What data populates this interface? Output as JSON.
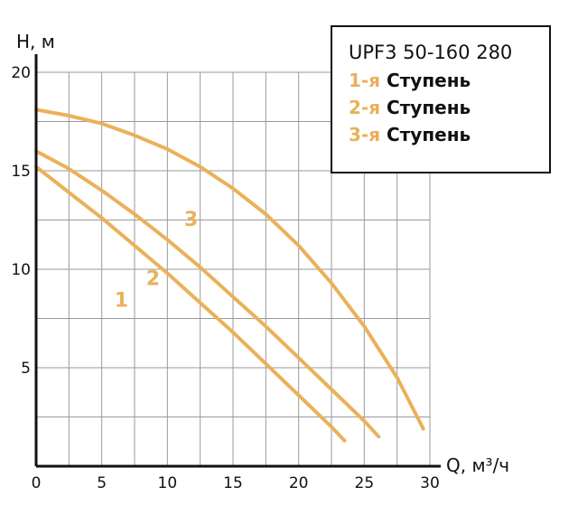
{
  "colors": {
    "curve": "#eab15a",
    "axis": "#111111",
    "grid": "#9a9a9a"
  },
  "chart_data": {
    "type": "line",
    "title": "",
    "xlabel": "Q, м³/ч",
    "ylabel": "H, м",
    "xlim": [
      0,
      30
    ],
    "ylim": [
      0,
      20
    ],
    "x_ticks": [
      "0",
      "5",
      "10",
      "15",
      "20",
      "25",
      "30"
    ],
    "y_ticks": [
      "5",
      "10",
      "15",
      "20"
    ],
    "grid": true,
    "legend_position": "top-right",
    "series": [
      {
        "name": "1-я Ступень",
        "curve_label": "1",
        "x": [
          0,
          2.5,
          5,
          7.5,
          10,
          12.5,
          15,
          17.5,
          20,
          22.5,
          23.5
        ],
        "y": [
          15.2,
          13.9,
          12.6,
          11.2,
          9.8,
          8.3,
          6.8,
          5.2,
          3.6,
          2.0,
          1.3
        ]
      },
      {
        "name": "2-я Ступень",
        "curve_label": "2",
        "x": [
          0,
          2.5,
          5,
          7.5,
          10,
          12.5,
          15,
          17.5,
          20,
          22.5,
          25,
          26.1
        ],
        "y": [
          16.0,
          15.1,
          14.0,
          12.8,
          11.5,
          10.1,
          8.6,
          7.1,
          5.5,
          3.9,
          2.3,
          1.5
        ]
      },
      {
        "name": "3-я Ступень",
        "curve_label": "3",
        "x": [
          0,
          2.5,
          5,
          7.5,
          10,
          12.5,
          15,
          17.5,
          20,
          22.5,
          25,
          27.5,
          29.5
        ],
        "y": [
          18.1,
          17.8,
          17.4,
          16.8,
          16.1,
          15.2,
          14.1,
          12.8,
          11.2,
          9.3,
          7.1,
          4.5,
          1.9
        ]
      }
    ]
  },
  "legend": {
    "title": "UPF3 50-160 280",
    "items": [
      {
        "num": "1-я",
        "text": "Ступень"
      },
      {
        "num": "2-я",
        "text": "Ступень"
      },
      {
        "num": "3-я",
        "text": "Ступень"
      }
    ]
  }
}
